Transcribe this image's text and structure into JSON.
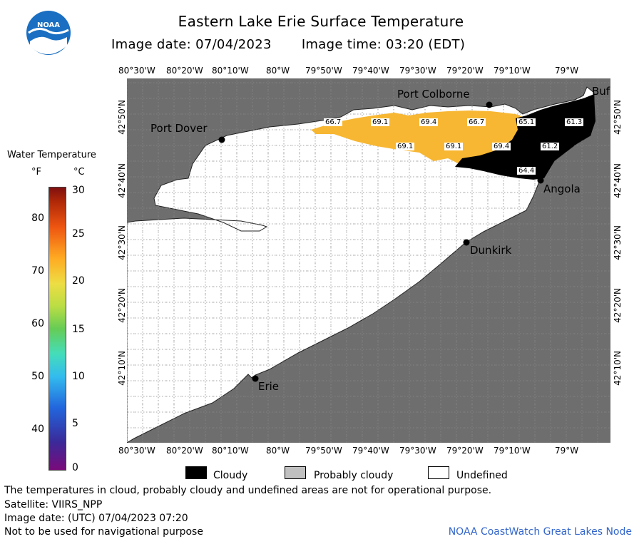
{
  "header": {
    "title": "Eastern Lake Erie Surface Temperature",
    "image_date": "Image date: 07/04/2023",
    "image_time": "Image time: 03:20 (EDT)",
    "logo_text": "NOAA"
  },
  "legend": {
    "title": "Water Temperature",
    "unit_f": "°F",
    "unit_c": "°C",
    "ticks_f": [
      "80",
      "70",
      "60",
      "50",
      "40"
    ],
    "ticks_c": [
      "30",
      "25",
      "20",
      "15",
      "10",
      "5",
      "0"
    ]
  },
  "map": {
    "lon_labels": [
      "80°30'W",
      "80°20'W",
      "80°10'W",
      "80°W",
      "79°50'W",
      "79°40'W",
      "79°30'W",
      "79°20'W",
      "79°10'W",
      "79°W"
    ],
    "lat_labels": [
      "42°50'N",
      "42°40'N",
      "42°30'N",
      "42°20'N",
      "42°10'N"
    ],
    "places": {
      "port_colborne": "Port Colborne",
      "port_dover": "Port Dover",
      "angola": "Angola",
      "dunkirk": "Dunkirk",
      "erie": "Erie",
      "buffalo": "Buf"
    },
    "temps": [
      "66.7",
      "69.1",
      "69.4",
      "66.7",
      "65.1",
      "61.3",
      "69.1",
      "69.1",
      "69.4",
      "61.2",
      "64.4"
    ],
    "colors": {
      "land": "#6e6e6e",
      "undefined_water": "#ffffff",
      "cloud": "#000000",
      "warm_water": "#f7b733",
      "grid": "#888888"
    }
  },
  "key": {
    "cloudy": "Cloudy",
    "probably_cloudy": "Probably cloudy",
    "undefined": "Undefined"
  },
  "footer": {
    "line1": "The temperatures in cloud, probably cloudy and undefined areas are not for operational purpose.",
    "line2": "Satellite: VIIRS_NPP",
    "line3": "Image date: (UTC) 07/04/2023  07:20",
    "line4": "Not to be used for navigational purpose",
    "credit": "NOAA CoastWatch Great Lakes Node"
  }
}
